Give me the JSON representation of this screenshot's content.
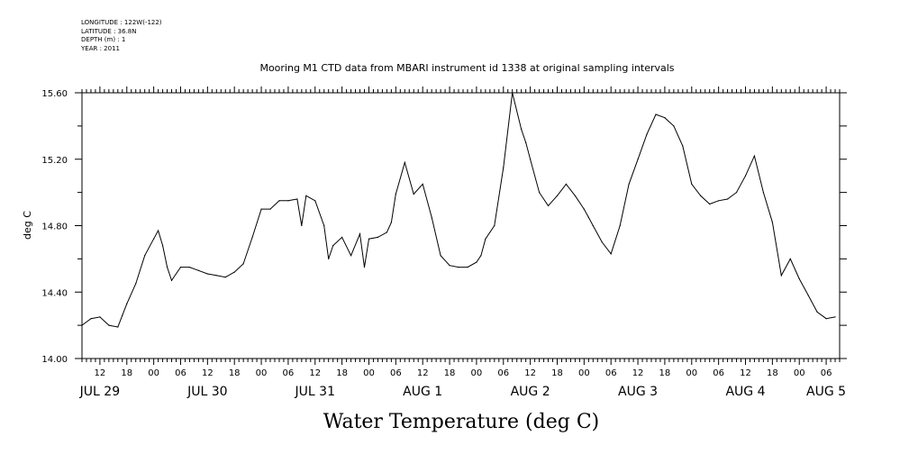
{
  "header": {
    "lines": [
      "LONGITUDE : 122W(-122)",
      "LATITUDE : 36.8N",
      "DEPTH (m) : 1",
      "YEAR : 2011"
    ]
  },
  "chart_data": {
    "type": "line",
    "title": "Mooring M1 CTD data from MBARI instrument id 1338 at original sampling intervals",
    "xlabel": "Water Temperature (deg C)",
    "ylabel": "deg C",
    "ylim": [
      14.0,
      15.6
    ],
    "yticks": [
      "14.00",
      "14.40",
      "14.80",
      "15.20",
      "15.60"
    ],
    "xlim_hours": [
      8,
      177
    ],
    "hour_ticks": [
      "12",
      "18",
      "00",
      "06",
      "12",
      "18",
      "00",
      "06",
      "12",
      "18",
      "00",
      "06",
      "12",
      "18",
      "00",
      "06",
      "12",
      "18",
      "00",
      "06",
      "12",
      "18",
      "00",
      "06",
      "12",
      "18",
      "00",
      "06"
    ],
    "day_labels": [
      "JUL 29",
      "JUL 30",
      "JUL 31",
      "AUG  1",
      "AUG  2",
      "AUG  3",
      "AUG  4",
      "AUG  5"
    ],
    "series": [
      {
        "x_hours_from_jul29": [
          8,
          10,
          12,
          14,
          16,
          17,
          18,
          20,
          22,
          24,
          25,
          26,
          27,
          28,
          30,
          32,
          34,
          36,
          38,
          40,
          42,
          44,
          46,
          48,
          50,
          52,
          54,
          56,
          57,
          58,
          60,
          62,
          63,
          64,
          66,
          68,
          70,
          71,
          72,
          74,
          76,
          77,
          78,
          80,
          82,
          84,
          86,
          88,
          90,
          92,
          94,
          96,
          97,
          98,
          100,
          102,
          104,
          106,
          107,
          108,
          110,
          112,
          114,
          116,
          118,
          120,
          121,
          122,
          124,
          126,
          128,
          130,
          132,
          134,
          136,
          138,
          140,
          142,
          144,
          146,
          148,
          150,
          152,
          154,
          156,
          158,
          160,
          162,
          164,
          166,
          168,
          170,
          172,
          174,
          176
        ],
        "values": [
          14.2,
          14.24,
          14.25,
          14.2,
          14.19,
          14.26,
          14.33,
          14.45,
          14.62,
          14.72,
          14.77,
          14.68,
          14.55,
          14.47,
          14.55,
          14.55,
          14.53,
          14.51,
          14.5,
          14.49,
          14.52,
          14.57,
          14.73,
          14.9,
          14.9,
          14.95,
          14.95,
          14.96,
          14.8,
          14.98,
          14.95,
          14.8,
          14.6,
          14.68,
          14.73,
          14.62,
          14.75,
          14.55,
          14.72,
          14.73,
          14.76,
          14.82,
          14.99,
          15.18,
          14.99,
          15.05,
          14.85,
          14.62,
          14.56,
          14.55,
          14.55,
          14.58,
          14.62,
          14.72,
          14.8,
          15.15,
          15.6,
          15.38,
          15.3,
          15.2,
          15.0,
          14.92,
          14.98,
          15.05,
          14.98,
          14.9,
          14.85,
          14.8,
          14.7,
          14.63,
          14.8,
          15.05,
          15.2,
          15.35,
          15.47,
          15.45,
          15.4,
          15.28,
          15.05,
          14.98,
          14.93,
          14.95,
          14.96,
          15.0,
          15.1,
          15.22,
          15.0,
          14.82,
          14.5,
          14.6,
          14.48,
          14.38,
          14.28,
          14.24,
          14.25
        ]
      }
    ]
  }
}
